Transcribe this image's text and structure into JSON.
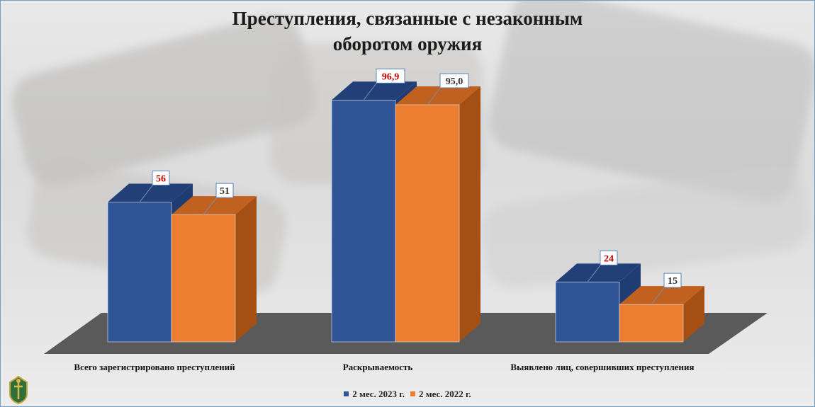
{
  "title_line1": "Преступления, связанные с незаконным",
  "title_line2": "оборотом оружия",
  "chart_data": {
    "type": "bar",
    "title": "Преступления, связанные с незаконным оборотом оружия",
    "categories": [
      "Всего зарегистрировано преступлений",
      "Раскрываемость",
      "Выявлено лиц, совершивших преступления"
    ],
    "series": [
      {
        "name": "2 мес. 2023 г.",
        "values": [
          56,
          96.9,
          24
        ],
        "labels": [
          "56",
          "96,9",
          "24"
        ],
        "color": "#2f5597"
      },
      {
        "name": "2 мес. 2022 г.",
        "values": [
          51,
          95.0,
          15
        ],
        "labels": [
          "51",
          "95,0",
          "15"
        ],
        "color": "#ed7d31"
      }
    ],
    "ylim": [
      0,
      100
    ],
    "grid": false,
    "legend": "bottom",
    "style": "3d"
  },
  "colors": {
    "series_2023_side": "#1f3c73",
    "series_2022_side": "#a54f14",
    "floor": "#5a5a5a",
    "highlight_label": "#c00000"
  },
  "icons": {
    "emblem": "prosecutor-emblem-icon"
  }
}
